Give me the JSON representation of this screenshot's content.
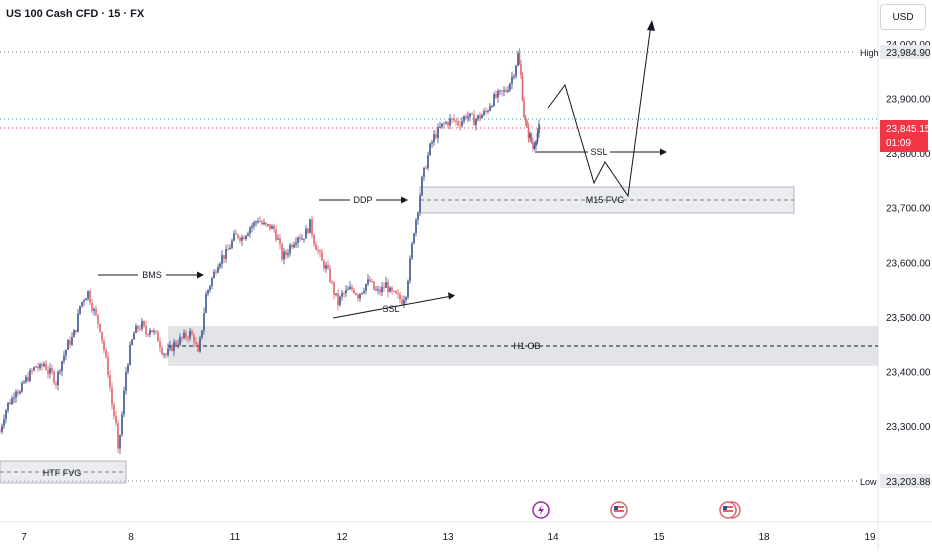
{
  "legend": {
    "symbol": "US 100 Cash CFD · 15 · FX"
  },
  "currency": "USD",
  "colors": {
    "up": "#3b4f8a",
    "down": "#e0626d",
    "price": "#f23645",
    "grid": "#d1d4dc"
  },
  "chart_data": {
    "type": "candlestick",
    "ylim": [
      23150,
      24050
    ],
    "x_ticks": [
      "7",
      "8",
      "11",
      "12",
      "13",
      "14",
      "15",
      "18",
      "19"
    ],
    "y_ticks": [
      "24,000.00",
      "23,900.00",
      "23,800.00",
      "23,700.00",
      "23,600.00",
      "23,500.00",
      "23,400.00",
      "23,300.00"
    ],
    "high": {
      "label": "High",
      "value": "23,984.90"
    },
    "low": {
      "label": "Low",
      "value": "23,203.88"
    },
    "current": {
      "value": "23,845.15",
      "countdown": "01:09"
    },
    "zones": [
      {
        "label": "HTF FVG",
        "top": 23245,
        "bottom": 23210
      },
      {
        "label": "H1 OB",
        "top": 23485,
        "bottom": 23410
      },
      {
        "label": "M15 FVG",
        "top": 23740,
        "bottom": 23690
      }
    ],
    "annotations": [
      "BMS",
      "DDP",
      "SSL",
      "SSL"
    ],
    "close_path": [
      [
        0,
        23290
      ],
      [
        4,
        23320
      ],
      [
        8,
        23340
      ],
      [
        12,
        23350
      ],
      [
        16,
        23370
      ],
      [
        20,
        23360
      ],
      [
        24,
        23380
      ],
      [
        28,
        23390
      ],
      [
        32,
        23400
      ],
      [
        36,
        23410
      ],
      [
        40,
        23405
      ],
      [
        44,
        23415
      ],
      [
        48,
        23400
      ],
      [
        52,
        23395
      ],
      [
        56,
        23380
      ],
      [
        60,
        23410
      ],
      [
        64,
        23430
      ],
      [
        68,
        23450
      ],
      [
        72,
        23460
      ],
      [
        76,
        23480
      ],
      [
        80,
        23520
      ],
      [
        84,
        23535
      ],
      [
        88,
        23545
      ],
      [
        92,
        23520
      ],
      [
        96,
        23500
      ],
      [
        100,
        23480
      ],
      [
        104,
        23440
      ],
      [
        108,
        23400
      ],
      [
        112,
        23340
      ],
      [
        116,
        23300
      ],
      [
        118,
        23250
      ],
      [
        122,
        23320
      ],
      [
        126,
        23400
      ],
      [
        130,
        23440
      ],
      [
        134,
        23470
      ],
      [
        138,
        23480
      ],
      [
        142,
        23485
      ],
      [
        146,
        23470
      ],
      [
        150,
        23480
      ],
      [
        154,
        23470
      ],
      [
        158,
        23460
      ],
      [
        162,
        23440
      ],
      [
        166,
        23430
      ],
      [
        170,
        23440
      ],
      [
        174,
        23450
      ],
      [
        178,
        23455
      ],
      [
        182,
        23460
      ],
      [
        186,
        23465
      ],
      [
        190,
        23470
      ],
      [
        194,
        23460
      ],
      [
        198,
        23430
      ],
      [
        202,
        23480
      ],
      [
        206,
        23540
      ],
      [
        210,
        23560
      ],
      [
        214,
        23580
      ],
      [
        218,
        23600
      ],
      [
        222,
        23610
      ],
      [
        226,
        23615
      ],
      [
        230,
        23630
      ],
      [
        234,
        23645
      ],
      [
        238,
        23650
      ],
      [
        242,
        23645
      ],
      [
        246,
        23655
      ],
      [
        250,
        23665
      ],
      [
        254,
        23670
      ],
      [
        258,
        23680
      ],
      [
        262,
        23670
      ],
      [
        266,
        23665
      ],
      [
        270,
        23665
      ],
      [
        274,
        23660
      ],
      [
        278,
        23640
      ],
      [
        282,
        23610
      ],
      [
        286,
        23615
      ],
      [
        290,
        23630
      ],
      [
        294,
        23640
      ],
      [
        298,
        23650
      ],
      [
        302,
        23645
      ],
      [
        306,
        23655
      ],
      [
        310,
        23670
      ],
      [
        314,
        23640
      ],
      [
        318,
        23620
      ],
      [
        322,
        23600
      ],
      [
        326,
        23590
      ],
      [
        330,
        23570
      ],
      [
        334,
        23545
      ],
      [
        338,
        23525
      ],
      [
        342,
        23540
      ],
      [
        346,
        23545
      ],
      [
        350,
        23550
      ],
      [
        354,
        23550
      ],
      [
        358,
        23540
      ],
      [
        362,
        23550
      ],
      [
        366,
        23560
      ],
      [
        370,
        23565
      ],
      [
        374,
        23550
      ],
      [
        378,
        23545
      ],
      [
        382,
        23550
      ],
      [
        386,
        23560
      ],
      [
        390,
        23545
      ],
      [
        394,
        23540
      ],
      [
        398,
        23535
      ],
      [
        402,
        23530
      ],
      [
        406,
        23545
      ],
      [
        410,
        23600
      ],
      [
        414,
        23660
      ],
      [
        418,
        23700
      ],
      [
        422,
        23750
      ],
      [
        426,
        23780
      ],
      [
        430,
        23810
      ],
      [
        434,
        23830
      ],
      [
        438,
        23840
      ],
      [
        442,
        23850
      ],
      [
        446,
        23855
      ],
      [
        450,
        23860
      ],
      [
        454,
        23860
      ],
      [
        458,
        23855
      ],
      [
        462,
        23860
      ],
      [
        466,
        23870
      ],
      [
        470,
        23865
      ],
      [
        474,
        23860
      ],
      [
        478,
        23865
      ],
      [
        482,
        23870
      ],
      [
        486,
        23875
      ],
      [
        490,
        23890
      ],
      [
        494,
        23900
      ],
      [
        498,
        23905
      ],
      [
        502,
        23910
      ],
      [
        506,
        23915
      ],
      [
        510,
        23930
      ],
      [
        514,
        23950
      ],
      [
        518,
        23980
      ],
      [
        521,
        23940
      ],
      [
        524,
        23870
      ],
      [
        527,
        23840
      ],
      [
        530,
        23830
      ],
      [
        533,
        23810
      ],
      [
        536,
        23830
      ],
      [
        539,
        23845
      ]
    ]
  }
}
